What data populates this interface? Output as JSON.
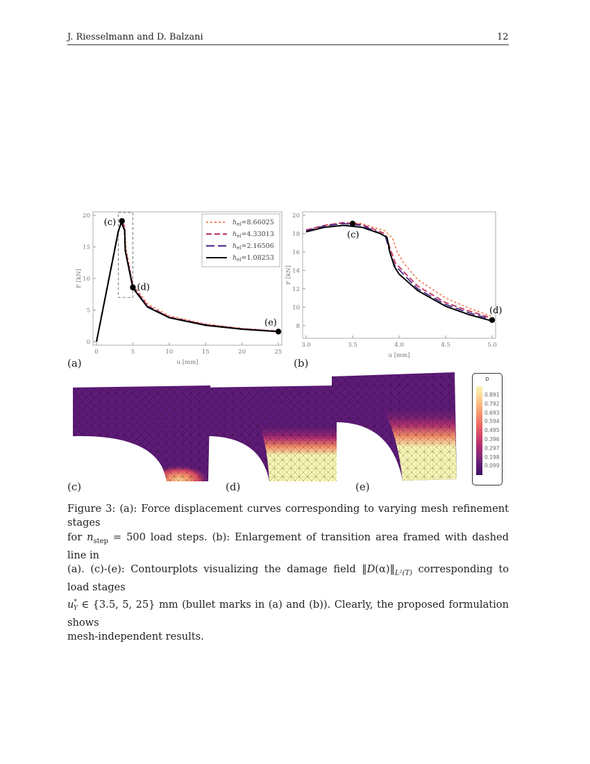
{
  "header": {
    "authors": "J. Riesselmann and D. Balzani",
    "page_number": "12"
  },
  "chart_data": [
    {
      "type": "line",
      "panel": "(a)",
      "xlabel": "u [mm]",
      "ylabel": "F [kN]",
      "xlim": [
        0,
        25
      ],
      "ylim": [
        0,
        20
      ],
      "xticks": [
        0,
        5,
        10,
        15,
        20,
        25
      ],
      "yticks": [
        0,
        5,
        10,
        15,
        20
      ],
      "legend": "top-right",
      "grid": false,
      "series": [
        {
          "name": "h_el=8.66025",
          "label_sub": "el",
          "label_val": "=8.66025",
          "color": "#f4845f",
          "dash": "3,3",
          "points": [
            [
              0,
              0
            ],
            [
              3,
              17.6
            ],
            [
              3.5,
              19.2
            ],
            [
              3.9,
              18.2
            ],
            [
              4.05,
              14.8
            ],
            [
              5,
              9.1
            ],
            [
              7,
              6.0
            ],
            [
              10,
              4.1
            ],
            [
              15,
              2.8
            ],
            [
              20,
              2.1
            ],
            [
              25,
              1.7
            ]
          ]
        },
        {
          "name": "h_el=4.33013",
          "label_sub": "el",
          "label_val": "=4.33013",
          "color": "#c0305a",
          "dash": "8,4",
          "points": [
            [
              0,
              0
            ],
            [
              3,
              17.6
            ],
            [
              3.5,
              19.2
            ],
            [
              3.88,
              18
            ],
            [
              3.96,
              14.8
            ],
            [
              5,
              8.8
            ],
            [
              7,
              5.7
            ],
            [
              10,
              3.9
            ],
            [
              15,
              2.7
            ],
            [
              20,
              2.05
            ],
            [
              25,
              1.65
            ]
          ]
        },
        {
          "name": "h_el=2.16506",
          "label_sub": "el",
          "label_val": "=2.16506",
          "color": "#4b2a8a",
          "dash": "12,5",
          "points": [
            [
              0,
              0
            ],
            [
              3,
              17.5
            ],
            [
              3.5,
              19.1
            ],
            [
              3.86,
              17.8
            ],
            [
              3.95,
              14.6
            ],
            [
              5,
              8.65
            ],
            [
              7,
              5.6
            ],
            [
              10,
              3.85
            ],
            [
              15,
              2.65
            ],
            [
              20,
              2.0
            ],
            [
              25,
              1.62
            ]
          ]
        },
        {
          "name": "h_el=1.08253",
          "label_sub": "el",
          "label_val": "=1.08253",
          "color": "#000000",
          "dash": "",
          "points": [
            [
              0,
              0
            ],
            [
              3,
              17.4
            ],
            [
              3.4,
              18.9
            ],
            [
              3.87,
              17.6
            ],
            [
              3.95,
              14.4
            ],
            [
              5,
              8.5
            ],
            [
              7,
              5.5
            ],
            [
              10,
              3.8
            ],
            [
              15,
              2.6
            ],
            [
              20,
              1.98
            ],
            [
              25,
              1.6
            ]
          ]
        }
      ],
      "markers": [
        {
          "x": 3.5,
          "y": 19.1,
          "label": "(c)"
        },
        {
          "x": 5,
          "y": 8.6,
          "label": "(d)"
        },
        {
          "x": 25,
          "y": 1.6,
          "label": "(e)"
        }
      ],
      "frame_box": {
        "x": [
          3,
          5
        ],
        "y": [
          7,
          20
        ]
      }
    },
    {
      "type": "line",
      "panel": "(b)",
      "xlabel": "u [mm]",
      "ylabel": "F [kN]",
      "xlim": [
        3.0,
        5.0
      ],
      "ylim": [
        7,
        20
      ],
      "xticks": [
        3.0,
        3.5,
        4.0,
        4.5,
        5.0
      ],
      "yticks": [
        8,
        10,
        12,
        14,
        16,
        18,
        20
      ],
      "grid": false,
      "series": [
        {
          "color": "#f4845f",
          "dash": "3,3",
          "points": [
            [
              3.0,
              18.4
            ],
            [
              3.2,
              18.9
            ],
            [
              3.4,
              19.2
            ],
            [
              3.6,
              19.1
            ],
            [
              3.85,
              18.3
            ],
            [
              3.93,
              17.5
            ],
            [
              3.98,
              16
            ],
            [
              4.05,
              14.8
            ],
            [
              4.2,
              13.0
            ],
            [
              4.5,
              11.0
            ],
            [
              4.75,
              9.9
            ],
            [
              5.0,
              9.0
            ]
          ]
        },
        {
          "color": "#c0305a",
          "dash": "8,4",
          "points": [
            [
              3.0,
              18.4
            ],
            [
              3.2,
              18.9
            ],
            [
              3.4,
              19.2
            ],
            [
              3.6,
              19.0
            ],
            [
              3.85,
              18.0
            ],
            [
              3.9,
              16.5
            ],
            [
              3.96,
              14.8
            ],
            [
              4.2,
              12.3
            ],
            [
              4.5,
              10.5
            ],
            [
              4.75,
              9.6
            ],
            [
              5.0,
              8.8
            ]
          ]
        },
        {
          "color": "#4b2a8a",
          "dash": "12,5",
          "points": [
            [
              3.0,
              18.3
            ],
            [
              3.2,
              18.85
            ],
            [
              3.4,
              19.1
            ],
            [
              3.6,
              18.9
            ],
            [
              3.85,
              17.8
            ],
            [
              3.9,
              16
            ],
            [
              3.95,
              14.6
            ],
            [
              4.2,
              12.0
            ],
            [
              4.5,
              10.3
            ],
            [
              4.75,
              9.4
            ],
            [
              5.0,
              8.65
            ]
          ]
        },
        {
          "color": "#000000",
          "dash": "",
          "points": [
            [
              3.0,
              18.2
            ],
            [
              3.2,
              18.7
            ],
            [
              3.4,
              18.9
            ],
            [
              3.6,
              18.7
            ],
            [
              3.8,
              18.0
            ],
            [
              3.87,
              17.6
            ],
            [
              3.9,
              16
            ],
            [
              3.95,
              14.4
            ],
            [
              4.0,
              13.6
            ],
            [
              4.2,
              11.8
            ],
            [
              4.5,
              10.1
            ],
            [
              4.75,
              9.2
            ],
            [
              5.0,
              8.5
            ]
          ]
        }
      ],
      "markers": [
        {
          "x": 3.5,
          "y": 19.1,
          "label": "(c)"
        },
        {
          "x": 5.0,
          "y": 8.6,
          "label": "(d)"
        }
      ]
    }
  ],
  "panels": {
    "a": "(a)",
    "b": "(b)",
    "c": "(c)",
    "d": "(d)",
    "e": "(e)"
  },
  "colorbar": {
    "title": "D",
    "ticks": [
      "0.891",
      "0.792",
      "0.693",
      "0.594",
      "0.495",
      "0.396",
      "0.297",
      "0.198",
      "0.099"
    ],
    "colors": [
      "#f9f6b5",
      "#fbd693",
      "#f9b37b",
      "#f68d6a",
      "#ec6663",
      "#d44467",
      "#b02f70",
      "#8a2776",
      "#5e1b78",
      "#3d1166"
    ]
  },
  "caption": {
    "l1": "Figure 3:    (a): Force displacement curves corresponding to varying mesh refinement stages",
    "l2a": "for ",
    "n": "n",
    "step": "step",
    "l2b": " = 500 load steps.  (b): Enlargement of transition area framed with dashed line in",
    "l3a": "(a). (c)-(e): Contourplots visualizing the damage field ‖",
    "D": "D",
    "l3b": "(α)‖",
    "L2T": "L²(T)",
    "l3c": " corresponding to load stages",
    "u": "u",
    "usup": "*",
    "usub": "Y",
    "l4": " ∈ {3.5, 5, 25} mm (bullet marks in (a) and (b)).  Clearly, the proposed formulation shows",
    "l5": "mesh-independent results."
  }
}
